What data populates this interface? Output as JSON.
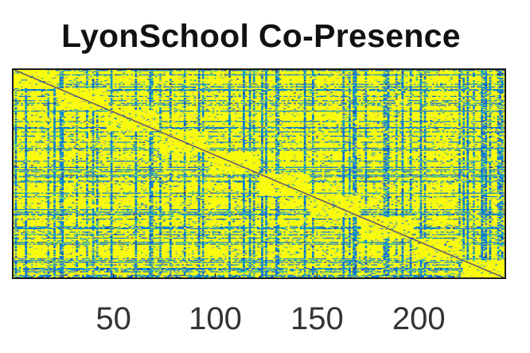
{
  "chart_data": {
    "type": "heatmap",
    "title": "LyonSchool Co-Presence",
    "xlabel": "",
    "ylabel": "",
    "matrix_size": 242,
    "xlim": [
      0.5,
      242.5
    ],
    "xticks": [
      50,
      100,
      150,
      200
    ],
    "xtick_labels": [
      "50",
      "100",
      "150",
      "200"
    ],
    "yticks_shown": false,
    "colormap": "parula",
    "colormap_stops": [
      "#352a87",
      "#0363e1",
      "#1485d4",
      "#06a7c6",
      "#38b99e",
      "#92bf73",
      "#d9ba56",
      "#fcce2e",
      "#f9fb0e"
    ],
    "diagonal_value": "low",
    "background_value": "high",
    "group_boundaries": [
      22,
      47,
      72,
      96,
      121,
      146,
      171,
      196,
      221,
      242
    ]
  }
}
